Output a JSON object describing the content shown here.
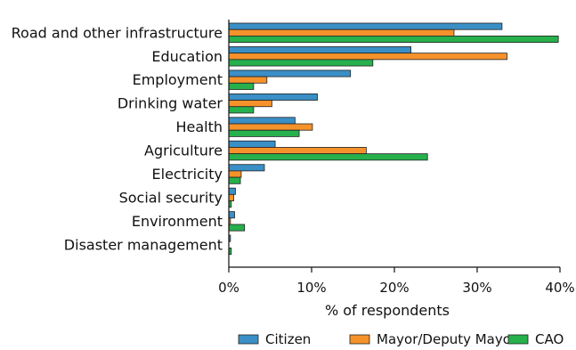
{
  "chart_data": {
    "type": "bar",
    "orientation": "horizontal",
    "xlabel": "% of respondents",
    "xlim": [
      0,
      40
    ],
    "xticks": [
      "0%",
      "10%",
      "20%",
      "30%",
      "40%"
    ],
    "grid": false,
    "legend_position": "bottom",
    "categories": [
      "Road and other infrastructure",
      "Education",
      "Employment",
      "Drinking water",
      "Health",
      "Agriculture",
      "Electricity",
      "Social security",
      "Environment",
      "Disaster management"
    ],
    "series": [
      {
        "name": "Citizen",
        "color": "#3a8fc6",
        "values": [
          33.0,
          22.0,
          14.7,
          10.7,
          8.0,
          5.6,
          4.3,
          0.8,
          0.7,
          0.2
        ]
      },
      {
        "name": "Mayor/Deputy Mayor",
        "color": "#f5922b",
        "values": [
          27.2,
          33.6,
          4.6,
          5.2,
          10.1,
          16.6,
          1.5,
          0.6,
          0.2,
          0.0
        ]
      },
      {
        "name": "CAO",
        "color": "#27b04c",
        "values": [
          39.8,
          17.4,
          3.0,
          3.0,
          8.5,
          24.0,
          1.4,
          0.3,
          1.9,
          0.3
        ]
      }
    ]
  }
}
